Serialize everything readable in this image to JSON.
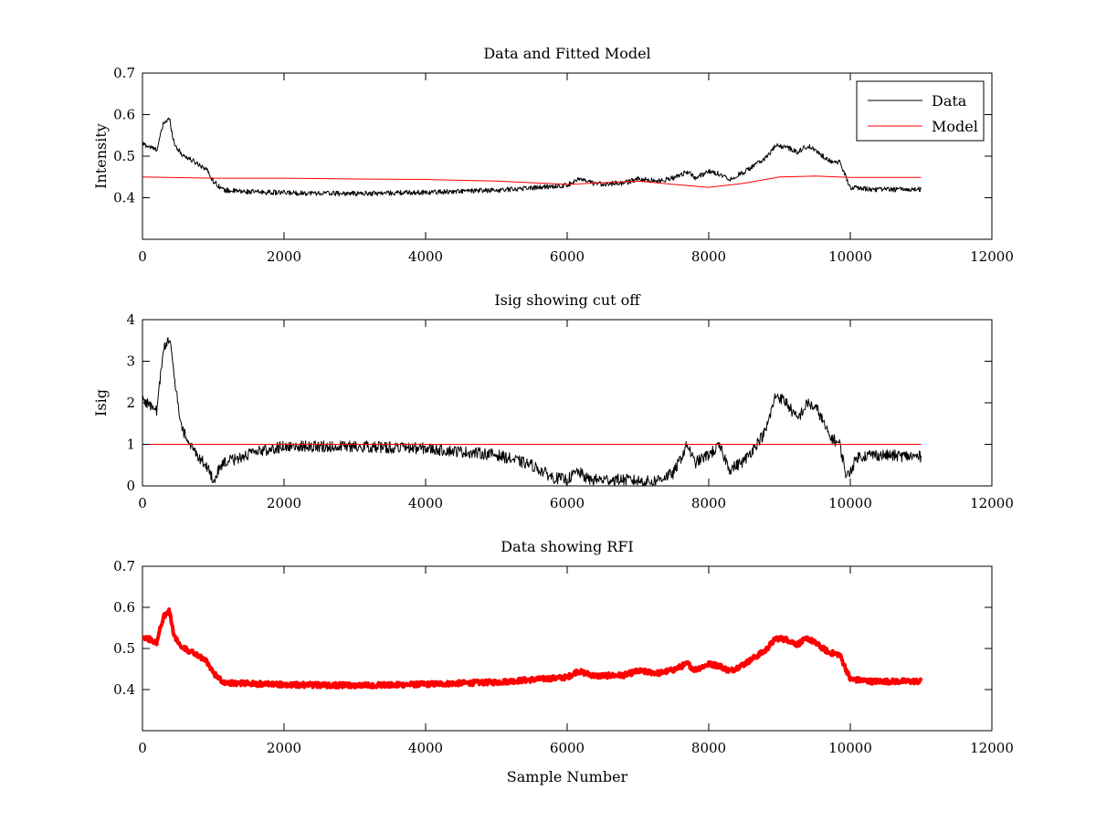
{
  "chart_data": [
    {
      "type": "line",
      "title": "Data and Fitted Model",
      "xlabel": "",
      "ylabel": "Intensity",
      "xlim": [
        0,
        12000
      ],
      "ylim": [
        0.3,
        0.7
      ],
      "xticks": [
        0,
        2000,
        4000,
        6000,
        8000,
        10000,
        12000
      ],
      "yticks": [
        0.4,
        0.5,
        0.6,
        0.7
      ],
      "ytick_labels": [
        "0.4",
        "0.5",
        "0.6",
        "0.7"
      ],
      "legend": {
        "placement": "top-right",
        "entries": [
          "Data",
          "Model"
        ]
      },
      "series": [
        {
          "name": "Data",
          "color": "#000000",
          "noise": 0.006,
          "x": [
            0,
            200,
            300,
            380,
            450,
            550,
            700,
            900,
            1000,
            1150,
            1400,
            2000,
            3000,
            4000,
            5000,
            6000,
            6150,
            6400,
            6800,
            7000,
            7300,
            7500,
            7700,
            7800,
            8000,
            8150,
            8300,
            8500,
            8800,
            8950,
            9100,
            9250,
            9400,
            9550,
            9700,
            9850,
            10000,
            10300,
            11000
          ],
          "y": [
            0.53,
            0.515,
            0.58,
            0.59,
            0.53,
            0.505,
            0.49,
            0.47,
            0.44,
            0.418,
            0.415,
            0.412,
            0.41,
            0.413,
            0.418,
            0.43,
            0.445,
            0.433,
            0.435,
            0.445,
            0.44,
            0.448,
            0.463,
            0.448,
            0.462,
            0.458,
            0.445,
            0.462,
            0.495,
            0.525,
            0.522,
            0.51,
            0.525,
            0.508,
            0.49,
            0.485,
            0.425,
            0.42,
            0.42
          ]
        },
        {
          "name": "Model",
          "color": "#ff0000",
          "noise": 0,
          "x": [
            0,
            1000,
            2000,
            3000,
            4000,
            5000,
            6000,
            7000,
            7500,
            8000,
            8500,
            9000,
            9500,
            10000,
            11000
          ],
          "y": [
            0.45,
            0.447,
            0.447,
            0.445,
            0.444,
            0.44,
            0.432,
            0.44,
            0.432,
            0.425,
            0.435,
            0.45,
            0.452,
            0.449,
            0.449
          ]
        }
      ]
    },
    {
      "type": "line",
      "title": "Isig showing cut off",
      "xlabel": "",
      "ylabel": "Isig",
      "xlim": [
        0,
        12000
      ],
      "ylim": [
        0,
        4
      ],
      "xticks": [
        0,
        2000,
        4000,
        6000,
        8000,
        10000,
        12000
      ],
      "yticks": [
        0,
        1,
        2,
        3,
        4
      ],
      "ytick_labels": [
        "0",
        "1",
        "2",
        "3",
        "4"
      ],
      "series": [
        {
          "color": "#000000",
          "noise": 0.14,
          "x": [
            0,
            200,
            300,
            380,
            450,
            550,
            700,
            900,
            1000,
            1150,
            1400,
            1700,
            2000,
            3000,
            4000,
            5000,
            5500,
            5800,
            6000,
            6150,
            6300,
            6800,
            7200,
            7500,
            7700,
            7800,
            8000,
            8150,
            8300,
            8500,
            8800,
            8950,
            9100,
            9250,
            9400,
            9550,
            9700,
            9850,
            9950,
            10100,
            10300,
            11000
          ],
          "y": [
            2.1,
            1.8,
            3.3,
            3.6,
            2.6,
            1.4,
            0.9,
            0.5,
            0.15,
            0.55,
            0.7,
            0.85,
            0.95,
            0.95,
            0.9,
            0.75,
            0.5,
            0.2,
            0.15,
            0.35,
            0.15,
            0.15,
            0.1,
            0.3,
            1.0,
            0.55,
            0.75,
            0.95,
            0.4,
            0.6,
            1.3,
            2.2,
            2.0,
            1.6,
            2.0,
            1.8,
            1.2,
            1.0,
            0.2,
            0.7,
            0.75,
            0.7
          ]
        },
        {
          "color": "#ff0000",
          "noise": 0,
          "x": [
            0,
            11000
          ],
          "y": [
            1,
            1
          ]
        }
      ]
    },
    {
      "type": "line",
      "title": "Data showing RFI",
      "xlabel": "Sample Number",
      "ylabel": "",
      "xlim": [
        0,
        12000
      ],
      "ylim": [
        0.3,
        0.7
      ],
      "xticks": [
        0,
        2000,
        4000,
        6000,
        8000,
        10000,
        12000
      ],
      "yticks": [
        0.4,
        0.5,
        0.6,
        0.7
      ],
      "ytick_labels": [
        "0.4",
        "0.5",
        "0.6",
        "0.7"
      ],
      "series": [
        {
          "color": "#ff0000",
          "noise": 0.006,
          "x": [
            0,
            200,
            300,
            380,
            450,
            550,
            700,
            900,
            1000,
            1150,
            1400,
            2000,
            3000,
            4000,
            5000,
            6000,
            6150,
            6400,
            6800,
            7000,
            7300,
            7500,
            7700,
            7800,
            8000,
            8150,
            8300,
            8500,
            8800,
            8950,
            9100,
            9250,
            9400,
            9550,
            9700,
            9850,
            10000,
            10300,
            11000
          ],
          "y": [
            0.53,
            0.515,
            0.58,
            0.59,
            0.53,
            0.505,
            0.49,
            0.47,
            0.44,
            0.418,
            0.415,
            0.412,
            0.41,
            0.413,
            0.418,
            0.43,
            0.445,
            0.433,
            0.435,
            0.445,
            0.44,
            0.448,
            0.463,
            0.448,
            0.462,
            0.458,
            0.445,
            0.462,
            0.495,
            0.525,
            0.522,
            0.51,
            0.525,
            0.508,
            0.49,
            0.485,
            0.425,
            0.42,
            0.42
          ]
        }
      ]
    }
  ]
}
